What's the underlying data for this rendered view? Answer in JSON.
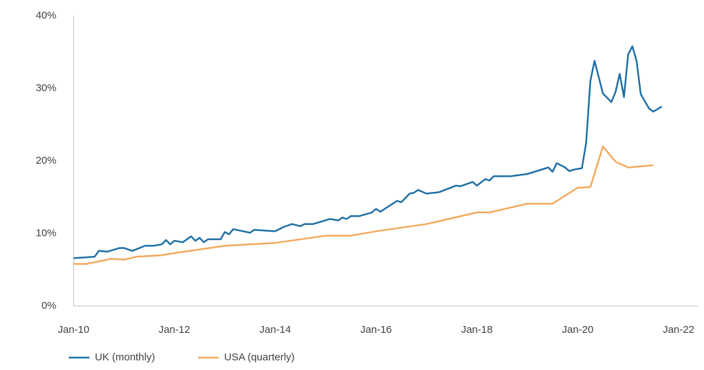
{
  "chart_data": {
    "type": "line",
    "xlim": [
      "2010-01",
      "2022-01"
    ],
    "xticks": [
      {
        "value": "2010-01",
        "label": "Jan-10"
      },
      {
        "value": "2012-01",
        "label": "Jan-12"
      },
      {
        "value": "2014-01",
        "label": "Jan-14"
      },
      {
        "value": "2016-01",
        "label": "Jan-16"
      },
      {
        "value": "2018-01",
        "label": "Jan-18"
      },
      {
        "value": "2020-01",
        "label": "Jan-20"
      },
      {
        "value": "2022-01",
        "label": "Jan-22"
      }
    ],
    "ylim": [
      0,
      40
    ],
    "yticks": [
      {
        "value": 0,
        "label": "0%"
      },
      {
        "value": 10,
        "label": "10%"
      },
      {
        "value": 20,
        "label": "20%"
      },
      {
        "value": 30,
        "label": "30%"
      },
      {
        "value": 40,
        "label": "40%"
      }
    ],
    "legend": "bottom",
    "series": [
      {
        "name": "UK (monthly)",
        "color": "#1f6fa5",
        "x": [
          "2010-01",
          "2010-06",
          "2010-07",
          "2010-09",
          "2010-12",
          "2011-01",
          "2011-03",
          "2011-06",
          "2011-08",
          "2011-10",
          "2011-11",
          "2011-12",
          "2012-01",
          "2012-03",
          "2012-05",
          "2012-06",
          "2012-07",
          "2012-08",
          "2012-09",
          "2012-12",
          "2013-01",
          "2013-02",
          "2013-03",
          "2013-07",
          "2013-08",
          "2014-01",
          "2014-03",
          "2014-05",
          "2014-07",
          "2014-08",
          "2014-10",
          "2015-02",
          "2015-04",
          "2015-05",
          "2015-06",
          "2015-07",
          "2015-09",
          "2015-12",
          "2016-01",
          "2016-02",
          "2016-06",
          "2016-07",
          "2016-09",
          "2016-10",
          "2016-11",
          "2017-01",
          "2017-04",
          "2017-08",
          "2017-09",
          "2017-12",
          "2018-01",
          "2018-03",
          "2018-04",
          "2018-05",
          "2018-09",
          "2019-01",
          "2019-06",
          "2019-07",
          "2019-08",
          "2019-10",
          "2019-11",
          "2019-12",
          "2020-01",
          "2020-02",
          "2020-03",
          "2020-04",
          "2020-05",
          "2020-07",
          "2020-09",
          "2020-10",
          "2020-11",
          "2020-12",
          "2021-01",
          "2021-02",
          "2021-03",
          "2021-04",
          "2021-06",
          "2021-07",
          "2021-09"
        ],
        "values": [
          6.6,
          6.8,
          7.6,
          7.5,
          8.0,
          8.0,
          7.6,
          8.3,
          8.3,
          8.5,
          9.1,
          8.5,
          9.0,
          8.8,
          9.6,
          9.0,
          9.4,
          8.8,
          9.2,
          9.2,
          10.2,
          9.9,
          10.6,
          10.1,
          10.5,
          10.3,
          10.9,
          11.3,
          11.0,
          11.3,
          11.3,
          12.0,
          11.8,
          12.2,
          12.0,
          12.4,
          12.4,
          12.9,
          13.4,
          13.0,
          14.5,
          14.3,
          15.5,
          15.6,
          16.0,
          15.5,
          15.7,
          16.6,
          16.5,
          17.1,
          16.6,
          17.5,
          17.3,
          17.9,
          17.9,
          18.2,
          19.1,
          18.5,
          19.7,
          19.1,
          18.6,
          18.8,
          18.9,
          19.0,
          22.5,
          31.0,
          33.8,
          29.3,
          28.1,
          29.5,
          32.0,
          28.8,
          34.7,
          35.8,
          33.8,
          29.2,
          27.2,
          26.8,
          27.5
        ]
      },
      {
        "name": "USA (quarterly)",
        "color": "#f2a95c",
        "x": [
          "2010-01",
          "2010-04",
          "2010-10",
          "2011-01",
          "2011-04",
          "2011-10",
          "2012-01",
          "2013-01",
          "2014-01",
          "2015-01",
          "2015-07",
          "2016-01",
          "2017-01",
          "2018-01",
          "2018-04",
          "2019-01",
          "2019-07",
          "2020-01",
          "2020-04",
          "2020-07",
          "2020-10",
          "2021-01",
          "2021-07"
        ],
        "values": [
          5.8,
          5.8,
          6.5,
          6.4,
          6.8,
          7.0,
          7.3,
          8.3,
          8.7,
          9.7,
          9.7,
          10.3,
          11.3,
          12.9,
          12.9,
          14.1,
          14.1,
          16.3,
          16.4,
          22.0,
          19.9,
          19.1,
          19.4
        ]
      }
    ]
  }
}
